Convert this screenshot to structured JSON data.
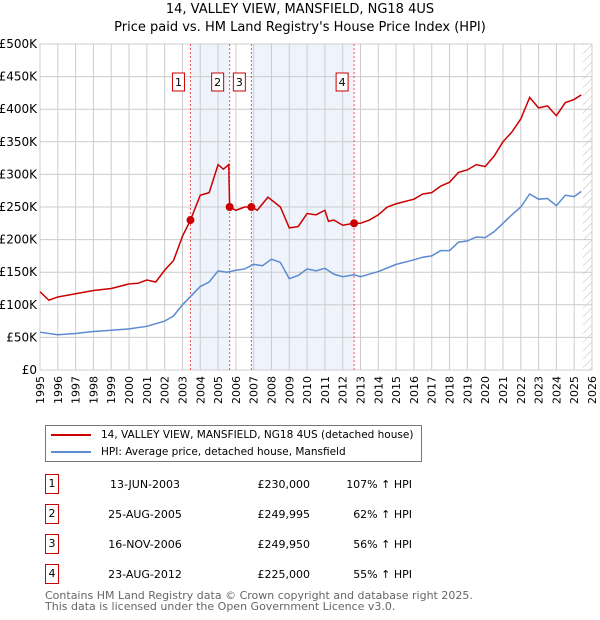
{
  "chart_data": {
    "type": "line",
    "title": "14, VALLEY VIEW, MANSFIELD, NG18 4US",
    "subtitle": "Price paid vs. HM Land Registry's House Price Index (HPI)",
    "xlim": [
      1995,
      2026
    ],
    "ylim": [
      0,
      500000
    ],
    "x_ticks": [
      "1995",
      "1996",
      "1997",
      "1998",
      "1999",
      "2000",
      "2001",
      "2002",
      "2003",
      "2004",
      "2005",
      "2006",
      "2007",
      "2008",
      "2009",
      "2010",
      "2011",
      "2012",
      "2013",
      "2014",
      "2015",
      "2016",
      "2017",
      "2018",
      "2019",
      "2020",
      "2021",
      "2022",
      "2023",
      "2024",
      "2025",
      "2026"
    ],
    "y_ticks": [
      "£0",
      "£50K",
      "£100K",
      "£150K",
      "£200K",
      "£250K",
      "£300K",
      "£350K",
      "£400K",
      "£450K",
      "£500K"
    ],
    "grid": true,
    "series": [
      {
        "name": "14, VALLEY VIEW, MANSFIELD, NG18 4US (detached house)",
        "color": "#cc0000",
        "x": [
          1995,
          1995.5,
          1996,
          1997,
          1998,
          1999,
          2000,
          2000.5,
          2001,
          2001.5,
          2002,
          2002.5,
          2003,
          2003.45,
          2004,
          2004.5,
          2005,
          2005.3,
          2005.6,
          2005.65,
          2006,
          2006.5,
          2006.9,
          2007.2,
          2007.8,
          2008.5,
          2009,
          2009.5,
          2010,
          2010.5,
          2011,
          2011.2,
          2011.5,
          2012,
          2012.64,
          2013,
          2013.5,
          2014,
          2014.5,
          2015,
          2016,
          2016.5,
          2017,
          2017.5,
          2018,
          2018.5,
          2019,
          2019.5,
          2020,
          2020.5,
          2021,
          2021.5,
          2022,
          2022.5,
          2023,
          2023.5,
          2024,
          2024.5,
          2025,
          2025.4
        ],
        "values": [
          120000,
          107000,
          112000,
          117000,
          122000,
          125000,
          132000,
          133000,
          138000,
          135000,
          153000,
          168000,
          205000,
          230000,
          268000,
          272000,
          315000,
          308000,
          315000,
          250000,
          245000,
          250000,
          250000,
          245000,
          265000,
          250000,
          218000,
          220000,
          240000,
          238000,
          245000,
          228000,
          230000,
          222000,
          225000,
          225000,
          230000,
          238000,
          250000,
          255000,
          262000,
          270000,
          272000,
          282000,
          288000,
          303000,
          307000,
          315000,
          312000,
          328000,
          350000,
          365000,
          385000,
          418000,
          402000,
          405000,
          390000,
          410000,
          415000,
          422000
        ]
      },
      {
        "name": "HPI: Average price, detached house, Mansfield",
        "color": "#5b8bd0",
        "x": [
          1995,
          1996,
          1997,
          1998,
          1999,
          2000,
          2001,
          2002,
          2002.5,
          2003,
          2004,
          2004.5,
          2005,
          2005.5,
          2006,
          2006.5,
          2007,
          2007.5,
          2008,
          2008.5,
          2009,
          2009.5,
          2010,
          2010.5,
          2011,
          2011.5,
          2012,
          2012.64,
          2013,
          2014,
          2015,
          2016,
          2016.5,
          2017,
          2017.5,
          2018,
          2018.5,
          2019,
          2019.5,
          2020,
          2020.5,
          2021,
          2021.5,
          2022,
          2022.5,
          2023,
          2023.5,
          2024,
          2024.5,
          2025,
          2025.4
        ],
        "values": [
          58000,
          54000,
          56000,
          59000,
          61000,
          63000,
          67000,
          75000,
          83000,
          100000,
          128000,
          135000,
          152000,
          150000,
          153000,
          155000,
          162000,
          160000,
          170000,
          165000,
          140000,
          145000,
          155000,
          152000,
          156000,
          147000,
          143000,
          146000,
          143000,
          151000,
          162000,
          169000,
          173000,
          175000,
          183000,
          183000,
          196000,
          198000,
          204000,
          203000,
          212000,
          225000,
          238000,
          250000,
          270000,
          262000,
          263000,
          252000,
          268000,
          266000,
          274000
        ]
      }
    ],
    "shaded_ranges": [
      [
        2003.45,
        2005.65
      ],
      [
        2006.87,
        2012.64
      ]
    ],
    "forecast_from": 2025.5,
    "sales": [
      {
        "id": "1",
        "x": 2003.45,
        "date": "13-JUN-2003",
        "price": 230000,
        "price_label": "£230,000",
        "hpi": "107% ↑ HPI"
      },
      {
        "id": "2",
        "x": 2005.65,
        "date": "25-AUG-2005",
        "price": 249995,
        "price_label": "£249,995",
        "hpi": "62% ↑ HPI"
      },
      {
        "id": "3",
        "x": 2006.87,
        "date": "16-NOV-2006",
        "price": 249950,
        "price_label": "£249,950",
        "hpi": "56% ↑ HPI"
      },
      {
        "id": "4",
        "x": 2012.64,
        "date": "23-AUG-2012",
        "price": 225000,
        "price_label": "£225,000",
        "hpi": "55% ↑ HPI"
      }
    ],
    "legend_placement": "below"
  },
  "footer": [
    "Contains HM Land Registry data © Crown copyright and database right 2025.",
    "This data is licensed under the Open Government Licence v3.0."
  ]
}
